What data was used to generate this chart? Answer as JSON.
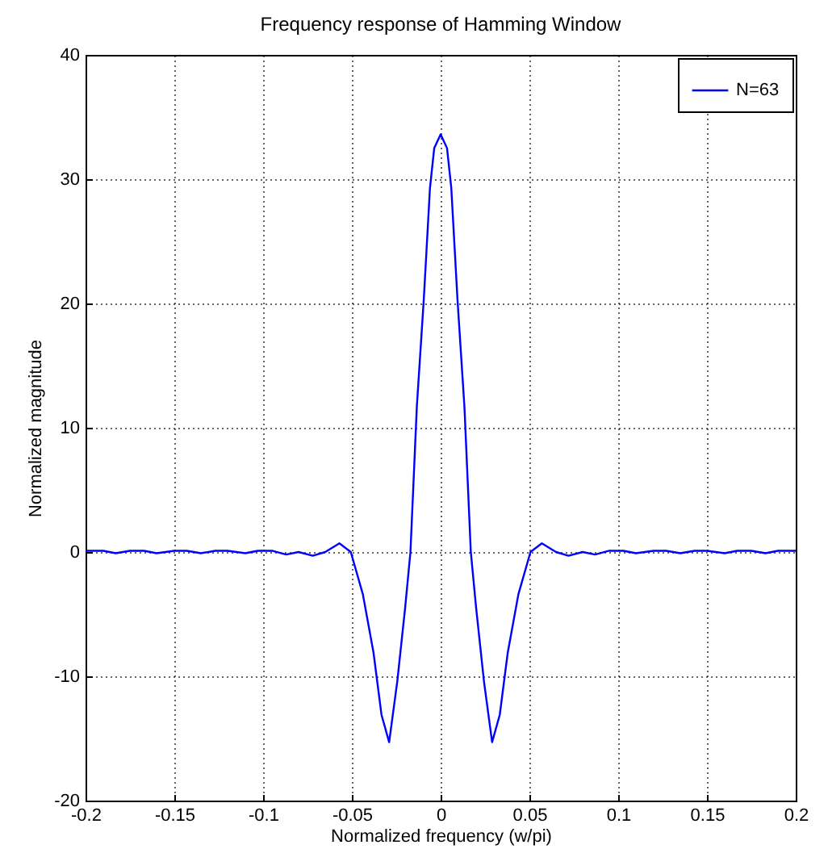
{
  "chart_data": {
    "type": "line",
    "title": "Frequency response of Hamming Window",
    "xlabel": "Normalized frequency (w/pi)",
    "ylabel": "Normalized magnitude",
    "x": [
      -0.2,
      -0.19,
      -0.183,
      -0.175,
      -0.167,
      -0.16,
      -0.15,
      -0.143,
      -0.135,
      -0.127,
      -0.12,
      -0.11,
      -0.103,
      -0.095,
      -0.087,
      -0.08,
      -0.072,
      -0.065,
      -0.057,
      -0.0506,
      -0.0438,
      -0.0378,
      -0.0333,
      -0.029,
      -0.0244,
      -0.02,
      -0.017,
      -0.0134,
      -0.0095,
      -0.006,
      -0.0036,
      0,
      0.0036,
      0.006,
      0.0095,
      0.0134,
      0.017,
      0.02,
      0.0244,
      0.029,
      0.0333,
      0.0378,
      0.0438,
      0.0506,
      0.057,
      0.065,
      0.072,
      0.08,
      0.087,
      0.095,
      0.103,
      0.11,
      0.12,
      0.127,
      0.135,
      0.143,
      0.15,
      0.16,
      0.167,
      0.175,
      0.183,
      0.19,
      0.2
    ],
    "series": [
      {
        "name": "N=63",
        "color": "#0000ff",
        "values": [
          0.1,
          0.1,
          -0.1,
          0.1,
          0.1,
          -0.1,
          0.1,
          0.1,
          -0.1,
          0.1,
          0.1,
          -0.1,
          0.1,
          0.1,
          -0.2,
          0,
          -0.3,
          0,
          0.7,
          0,
          -3.4,
          -8.1,
          -13.1,
          -15.3,
          -10.4,
          -4.5,
          0,
          11.7,
          20.3,
          29.3,
          32.5,
          33.6,
          32.5,
          29.3,
          20.3,
          11.7,
          0,
          -4.5,
          -10.4,
          -15.3,
          -13.1,
          -8.1,
          -3.4,
          0,
          0.7,
          0,
          -0.3,
          0,
          -0.2,
          0.1,
          0.1,
          -0.1,
          0.1,
          0.1,
          -0.1,
          0.1,
          0.1,
          -0.1,
          0.1,
          0.1,
          -0.1,
          0.1,
          0.1
        ]
      }
    ],
    "xlim": [
      -0.2,
      0.2
    ],
    "xticks": [
      -0.2,
      -0.15,
      -0.1,
      -0.05,
      0,
      0.05,
      0.1,
      0.15,
      0.2
    ],
    "ylim": [
      -20,
      40
    ],
    "yticks": [
      -20,
      -10,
      0,
      10,
      20,
      30,
      40
    ],
    "grid": true,
    "legend": "top right",
    "marker": "none",
    "line_style": "solid"
  }
}
